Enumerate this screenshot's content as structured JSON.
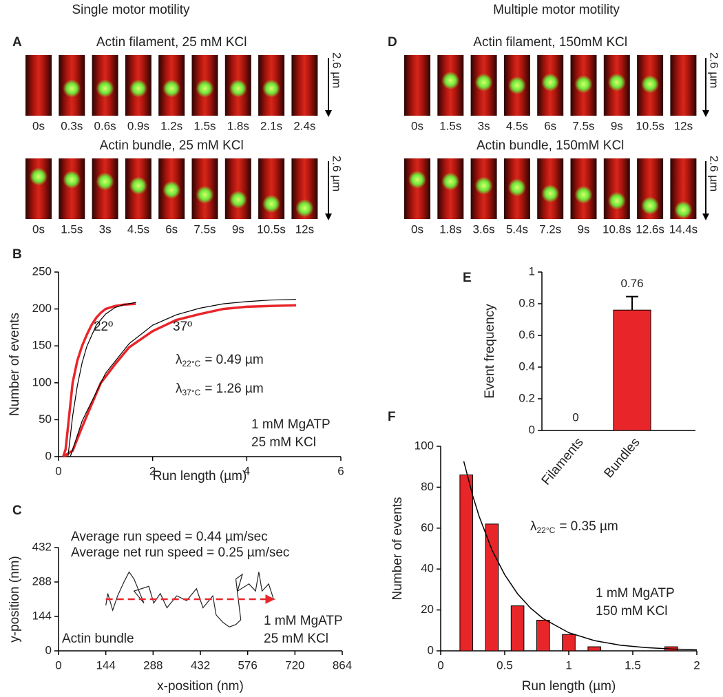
{
  "headings": [
    "Single motor motility",
    "Multiple motor motility"
  ],
  "image_panels": [
    {
      "panel_label": "A",
      "rows": [
        {
          "title": "Actin filament, 25 mM KCl",
          "times": [
            "0s",
            "0.3s",
            "0.6s",
            "0.9s",
            "1.2s",
            "1.5s",
            "1.8s",
            "2.1s",
            "2.4s"
          ],
          "scale_label": "2.6 µm"
        },
        {
          "title": "Actin bundle, 25 mM KCl",
          "times": [
            "0s",
            "1.5s",
            "3s",
            "4.5s",
            "6s",
            "7.5s",
            "9s",
            "10.5s",
            "12s"
          ],
          "scale_label": "2.6 µm"
        }
      ]
    },
    {
      "panel_label": "D",
      "rows": [
        {
          "title": "Actin filament, 150mM KCl",
          "times": [
            "0s",
            "1.5s",
            "3s",
            "4.5s",
            "6s",
            "7.5s",
            "9s",
            "10.5s",
            "12s"
          ],
          "scale_label": "2.6 µm"
        },
        {
          "title": "Actin bundle, 150mM KCl",
          "times": [
            "0s",
            "1.8s",
            "3.6s",
            "5.4s",
            "7.2s",
            "9s",
            "10.8s",
            "12.6s",
            "14.4s"
          ],
          "scale_label": "2.6 µm"
        }
      ]
    }
  ],
  "chart_data": [
    {
      "type": "line",
      "panel_label": "B",
      "xlabel": "Run length (µm)",
      "ylabel": "Number of events",
      "xlim": [
        0,
        6
      ],
      "ylim": [
        0,
        250
      ],
      "xticks": [
        0,
        2,
        4,
        6
      ],
      "yticks": [
        0,
        50,
        100,
        150,
        200,
        250
      ],
      "series": [
        {
          "color": "#e8262a",
          "x": [
            0.1,
            0.15,
            0.2,
            0.3,
            0.4,
            0.5,
            0.6,
            0.7,
            0.8,
            0.9,
            1.0,
            1.2,
            1.4,
            1.64
          ],
          "values": [
            0,
            10,
            40,
            100,
            130,
            150,
            165,
            178,
            188,
            195,
            200,
            204,
            206,
            207
          ]
        },
        {
          "color": "#e8262a",
          "x": [
            0.1,
            0.3,
            0.5,
            0.7,
            0.9,
            1.2,
            1.5,
            2.0,
            2.5,
            3.0,
            3.5,
            4.0,
            4.5,
            5.05
          ],
          "values": [
            0,
            8,
            40,
            70,
            100,
            125,
            148,
            170,
            185,
            193,
            200,
            203,
            204,
            205
          ]
        },
        {
          "color": "#000000",
          "x": [
            0.2,
            0.3,
            0.4,
            0.5,
            0.6,
            0.8,
            1.0,
            1.2,
            1.4,
            1.65
          ],
          "values": [
            0,
            55,
            96,
            127,
            149,
            178,
            193,
            202,
            206,
            209
          ]
        },
        {
          "color": "#000000",
          "x": [
            0.25,
            0.5,
            1,
            1.5,
            2,
            2.5,
            3,
            3.5,
            4,
            4.5,
            5.05
          ],
          "values": [
            0,
            48,
            113,
            153,
            178,
            192,
            201,
            207,
            210,
            212,
            213
          ]
        }
      ],
      "annotations": [
        {
          "text": "22º"
        },
        {
          "text": "37º"
        },
        {
          "symbol": "λ",
          "sub": "22°C",
          "text": "= 0.49 µm"
        },
        {
          "symbol": "λ",
          "sub": "37°C",
          "text": "= 1.26 µm"
        },
        {
          "text": "1 mM MgATP"
        },
        {
          "text": "25 mM KCl"
        }
      ]
    },
    {
      "type": "line",
      "panel_label": "C",
      "xlabel": "x-position (nm)",
      "ylabel": "y-position (nm)",
      "xlim": [
        0,
        864
      ],
      "ylim": [
        0,
        432
      ],
      "xticks": [
        0,
        144,
        288,
        432,
        576,
        720,
        864
      ],
      "yticks": [
        0,
        144,
        288,
        432
      ],
      "series": [
        {
          "color": "#222222",
          "x": [
            144,
            150,
            165,
            180,
            200,
            215,
            230,
            245,
            260,
            230,
            275,
            290,
            310,
            330,
            360,
            390,
            420,
            440,
            470,
            480,
            500,
            520,
            540,
            555,
            540,
            560,
            545,
            580,
            600,
            610,
            620,
            640,
            655,
            660
          ],
          "values": [
            190,
            240,
            170,
            230,
            290,
            330,
            300,
            250,
            200,
            250,
            270,
            200,
            240,
            180,
            230,
            210,
            260,
            180,
            230,
            150,
            120,
            100,
            110,
            130,
            300,
            320,
            250,
            280,
            250,
            330,
            250,
            280,
            216,
            216
          ]
        }
      ],
      "net_path": {
        "color": "#e8262a",
        "x": [
          144,
          655
        ],
        "values": [
          216,
          216
        ]
      },
      "annotations": [
        {
          "text": "Average run speed = 0.44 µm/sec"
        },
        {
          "text": "Average net run speed = 0.25 µm/sec",
          "color": "#e8262a"
        },
        {
          "text": "Actin bundle"
        },
        {
          "text": "1 mM MgATP"
        },
        {
          "text": "25 mM KCl"
        }
      ]
    },
    {
      "type": "bar",
      "panel_label": "E",
      "ylabel": "Event frequency",
      "categories": [
        "Filaments",
        "Bundles"
      ],
      "values": [
        0,
        0.76
      ],
      "errors": [
        0,
        0.085
      ],
      "color": "#e8262a",
      "ylim": [
        0,
        1
      ],
      "yticks": [
        0,
        0.2,
        0.4,
        0.6,
        0.8,
        1
      ]
    },
    {
      "type": "histogram",
      "panel_label": "F",
      "xlabel": "Run length (µm)",
      "ylabel": "Number of events",
      "bins": [
        0.1,
        0.3,
        0.5,
        0.7,
        0.9,
        1.1,
        1.3,
        1.5,
        1.7,
        1.9
      ],
      "values": [
        86,
        62,
        22,
        15,
        8,
        2,
        0,
        0,
        2
      ],
      "color": "#e8262a",
      "xlim": [
        0,
        2
      ],
      "ylim": [
        0,
        100
      ],
      "xticks": [
        0,
        0.5,
        1,
        1.5,
        2
      ],
      "yticks": [
        0,
        20,
        40,
        60,
        80,
        100
      ],
      "fit": {
        "color": "#000000",
        "x": [
          0.18,
          0.25,
          0.3,
          0.4,
          0.5,
          0.6,
          0.7,
          0.8,
          1.0,
          1.2,
          1.4,
          1.6,
          1.8,
          2.0
        ],
        "values": [
          92.7,
          75.9,
          65.8,
          49.4,
          37.2,
          27.9,
          21.0,
          15.8,
          8.9,
          5.0,
          2.8,
          1.6,
          0.9,
          0.5
        ]
      },
      "annotations": [
        {
          "symbol": "λ",
          "sub": "22°C",
          "text": "= 0.35 µm"
        },
        {
          "text": "1 mM MgATP"
        },
        {
          "text": "150 mM KCl"
        }
      ]
    }
  ]
}
